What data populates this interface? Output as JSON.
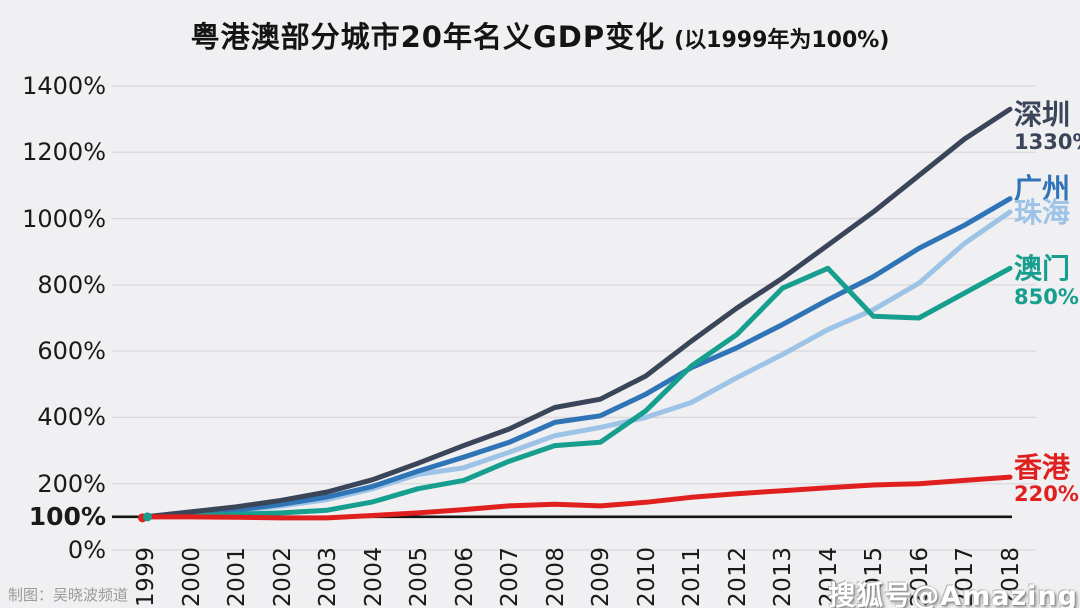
{
  "title": {
    "main": "粤港澳部分城市20年名义GDP变化",
    "sub": "(以1999年为100%)"
  },
  "credit": "制图：吴晓波频道",
  "watermark": "搜狐号@Amazing",
  "colors": {
    "background": "#f0eff1",
    "grid": "#d9d8db",
    "baseline": "#141414",
    "axis_text": "#1a1a1a",
    "shenzhen": "#3b4559",
    "guangzhou": "#2e74b6",
    "zhuhai": "#9dc3e6",
    "macau": "#169e8e",
    "hongkong": "#e0201f"
  },
  "chart_data": {
    "type": "line",
    "title": "粤港澳部分城市20年名义GDP变化",
    "subtitle": "(以1999年为100%)",
    "xlabel": "",
    "ylabel": "",
    "grid": true,
    "legend_position": "right-end-labels",
    "ylim": [
      0,
      1400
    ],
    "y_ticks": [
      {
        "value": 0,
        "label": "0%",
        "bold": false,
        "gridline": true
      },
      {
        "value": 100,
        "label": "100%",
        "bold": true,
        "gridline": false
      },
      {
        "value": 200,
        "label": "200%",
        "bold": false,
        "gridline": true
      },
      {
        "value": 400,
        "label": "400%",
        "bold": false,
        "gridline": true
      },
      {
        "value": 600,
        "label": "600%",
        "bold": false,
        "gridline": true
      },
      {
        "value": 800,
        "label": "800%",
        "bold": false,
        "gridline": true
      },
      {
        "value": 1000,
        "label": "1000%",
        "bold": false,
        "gridline": true
      },
      {
        "value": 1200,
        "label": "1200%",
        "bold": false,
        "gridline": true
      },
      {
        "value": 1400,
        "label": "1400%",
        "bold": false,
        "gridline": true
      }
    ],
    "baseline_value": 100,
    "x": [
      "1999",
      "2000",
      "2001",
      "2002",
      "2003",
      "2004",
      "2005",
      "2006",
      "2007",
      "2008",
      "2009",
      "2010",
      "2011",
      "2012",
      "2013",
      "2014",
      "2015",
      "2016",
      "2017",
      "2018"
    ],
    "series": [
      {
        "key": "shenzhen",
        "name": "深圳",
        "color": "#3b4559",
        "end_label": "1330%",
        "values": [
          100,
          115,
          130,
          150,
          175,
          212,
          262,
          315,
          365,
          430,
          455,
          525,
          630,
          730,
          820,
          920,
          1020,
          1130,
          1240,
          1330
        ]
      },
      {
        "key": "guangzhou",
        "name": "广州",
        "color": "#2e74b6",
        "end_label": "",
        "values": [
          100,
          108,
          120,
          138,
          160,
          192,
          238,
          280,
          325,
          385,
          405,
          470,
          550,
          610,
          680,
          755,
          825,
          910,
          980,
          1060
        ]
      },
      {
        "key": "zhuhai",
        "name": "珠海",
        "color": "#9dc3e6",
        "end_label": "",
        "values": [
          100,
          106,
          117,
          133,
          152,
          185,
          228,
          248,
          295,
          345,
          370,
          400,
          445,
          520,
          590,
          665,
          725,
          805,
          925,
          1020
        ]
      },
      {
        "key": "macau",
        "name": "澳门",
        "color": "#169e8e",
        "end_label": "850%",
        "values": [
          100,
          103,
          108,
          112,
          120,
          145,
          185,
          210,
          268,
          315,
          325,
          420,
          555,
          650,
          790,
          850,
          705,
          700,
          775,
          850
        ]
      },
      {
        "key": "hongkong",
        "name": "香港",
        "color": "#e0201f",
        "end_label": "220%",
        "values": [
          100,
          100,
          99,
          97,
          97,
          104,
          112,
          122,
          133,
          138,
          133,
          144,
          159,
          170,
          179,
          188,
          196,
          200,
          210,
          220
        ]
      }
    ]
  }
}
